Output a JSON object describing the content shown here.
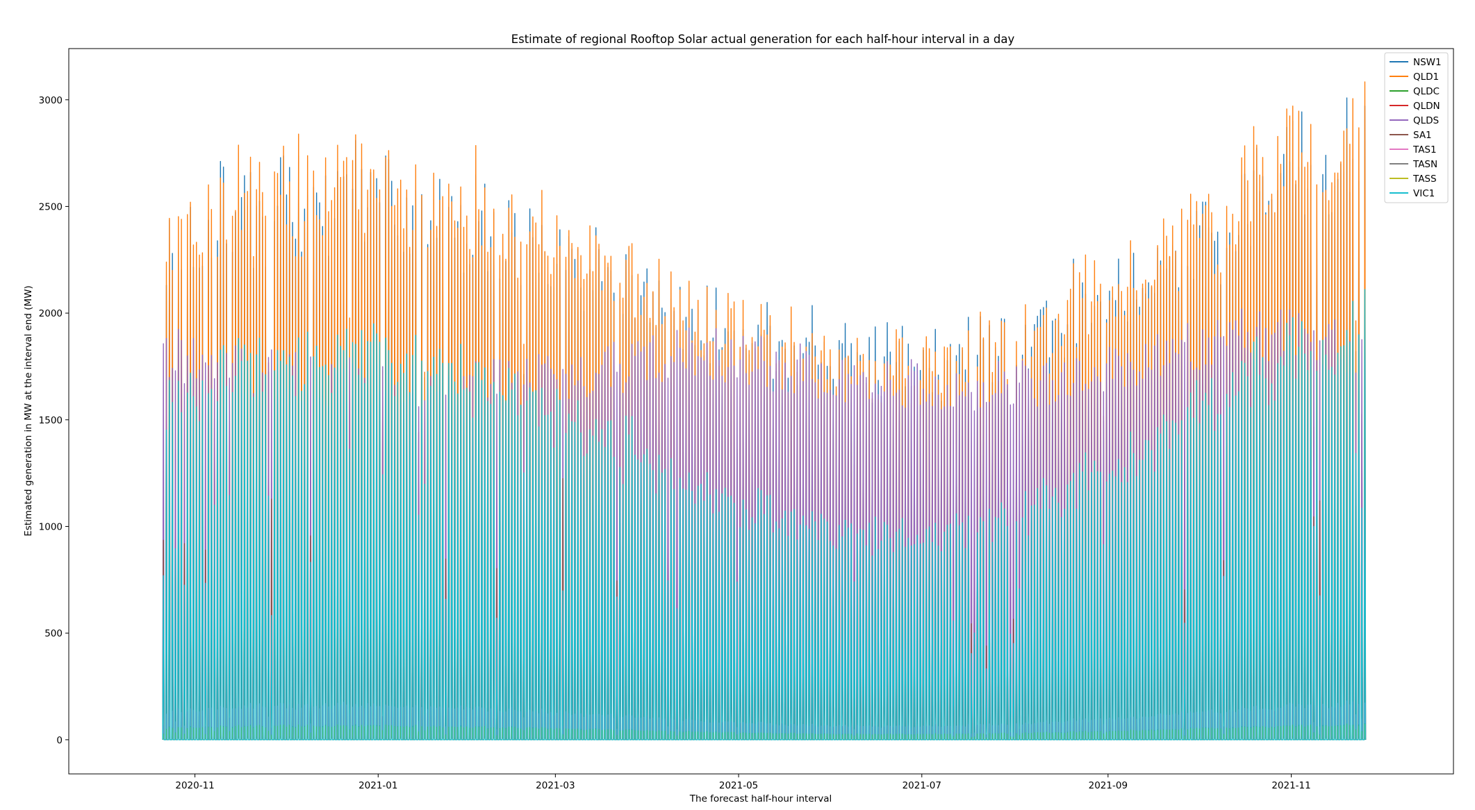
{
  "chart_data": {
    "type": "line",
    "title": "Estimate of regional Rooftop Solar actual generation for each half-hour interval in a day",
    "xlabel": "The forecast half-hour interval",
    "ylabel": "Estimated generation in MW at the interval end (MW)",
    "ylim": [
      -160,
      3240
    ],
    "xlim": [
      "2020-09-20",
      "2021-12-25"
    ],
    "data_range": [
      "2020-10-21",
      "2021-11-25"
    ],
    "yticks": [
      0,
      500,
      1000,
      1500,
      2000,
      2500,
      3000
    ],
    "yticks_labels": [
      "0",
      "500",
      "1000",
      "1500",
      "2000",
      "2500",
      "3000"
    ],
    "xticks": [
      "2020-11-01",
      "2021-01-01",
      "2021-03-01",
      "2021-05-01",
      "2021-07-01",
      "2021-09-01",
      "2021-11-01"
    ],
    "xticks_labels": [
      "2020-11",
      "2021-01",
      "2021-03",
      "2021-05",
      "2021-07",
      "2021-09",
      "2021-11"
    ],
    "legend_position": "top-right",
    "series": [
      {
        "name": "NSW1",
        "color": "#1f77b4",
        "daily_peak_range_MW": [
          1500,
          3000
        ]
      },
      {
        "name": "QLD1",
        "color": "#ff7f0e",
        "daily_peak_range_MW": [
          1400,
          3100
        ]
      },
      {
        "name": "QLDC",
        "color": "#2ca02c",
        "daily_peak_range_MW": [
          0,
          80
        ]
      },
      {
        "name": "QLDN",
        "color": "#d62728",
        "daily_peak_range_MW": [
          0,
          80
        ]
      },
      {
        "name": "QLDS",
        "color": "#9467bd",
        "daily_peak_range_MW": [
          600,
          2400
        ]
      },
      {
        "name": "SA1",
        "color": "#8c564b",
        "daily_peak_range_MW": [
          300,
          1200
        ]
      },
      {
        "name": "TAS1",
        "color": "#e377c2",
        "daily_peak_range_MW": [
          0,
          200
        ]
      },
      {
        "name": "TASN",
        "color": "#7f7f7f",
        "daily_peak_range_MW": [
          0,
          80
        ]
      },
      {
        "name": "TASS",
        "color": "#bcbd22",
        "daily_peak_range_MW": [
          0,
          80
        ]
      },
      {
        "name": "VIC1",
        "color": "#17becf",
        "daily_peak_range_MW": [
          500,
          2200
        ]
      }
    ]
  }
}
